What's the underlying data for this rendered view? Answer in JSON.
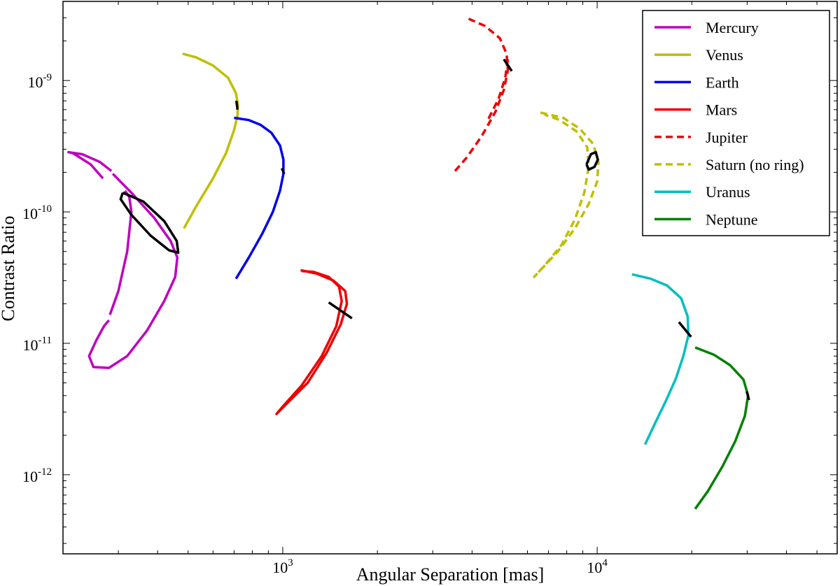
{
  "chart_data": {
    "type": "line",
    "xscale": "log",
    "yscale": "log",
    "xlabel": "Angular Separation [mas]",
    "ylabel": "Contrast Ratio",
    "xlim": [
      200,
      58000
    ],
    "ylim": [
      2.5e-13,
      4e-09
    ],
    "xticks": [
      {
        "value": 1000,
        "base": "10",
        "exp": "3"
      },
      {
        "value": 10000,
        "base": "10",
        "exp": "4"
      }
    ],
    "yticks": [
      {
        "value": 1e-09,
        "base": "10",
        "exp": "-9"
      },
      {
        "value": 1e-10,
        "base": "10",
        "exp": "-10"
      },
      {
        "value": 1e-11,
        "base": "10",
        "exp": "-11"
      },
      {
        "value": 1e-12,
        "base": "10",
        "exp": "-12"
      }
    ],
    "grid": false,
    "legend_position": "top-right",
    "series": [
      {
        "name": "Mercury",
        "color": "#bf00bf",
        "style": "solid",
        "paths": [
          [
            [
              268,
              1.8e-10
            ],
            [
              245,
              2.3e-10
            ],
            [
              215,
              2.8e-10
            ],
            [
              208,
              2.85e-10
            ],
            [
              230,
              2.75e-10
            ],
            [
              262,
              2.4e-10
            ],
            [
              285,
              2.05e-10
            ]
          ],
          [
            [
              288,
              1.95e-10
            ],
            [
              330,
              1.4e-10
            ],
            [
              390,
              9e-11
            ],
            [
              440,
              6e-11
            ],
            [
              462,
              4.5e-11
            ],
            [
              455,
              3.2e-11
            ],
            [
              420,
              2.1e-11
            ],
            [
              370,
              1.25e-11
            ],
            [
              320,
              8e-12
            ],
            [
              280,
              6.5e-12
            ],
            [
              250,
              6.6e-12
            ],
            [
              242,
              8e-12
            ],
            [
              255,
              1.05e-11
            ],
            [
              270,
              1.35e-11
            ],
            [
              280,
              1.5e-11
            ]
          ],
          [
            [
              282,
              1.65e-11
            ],
            [
              300,
              2.5e-11
            ],
            [
              320,
              5e-11
            ],
            [
              330,
              1e-10
            ],
            [
              325,
              1.3e-10
            ],
            [
              315,
              1.45e-10
            ]
          ]
        ]
      },
      {
        "name": "Venus",
        "color": "#bfbf00",
        "style": "solid",
        "paths": [
          [
            [
              485,
              7.5e-11
            ],
            [
              530,
              1.1e-10
            ],
            [
              600,
              1.8e-10
            ],
            [
              660,
              2.8e-10
            ],
            [
              700,
              4.2e-10
            ],
            [
              718,
              5.4e-10
            ],
            [
              720,
              6.5e-10
            ],
            [
              710,
              8e-10
            ],
            [
              670,
              1.05e-09
            ],
            [
              600,
              1.3e-09
            ],
            [
              530,
              1.5e-09
            ],
            [
              480,
              1.6e-09
            ]
          ]
        ]
      },
      {
        "name": "Earth",
        "color": "#0000ee",
        "style": "solid",
        "paths": [
          [
            [
              710,
              3.1e-11
            ],
            [
              780,
              4.5e-11
            ],
            [
              860,
              6.8e-11
            ],
            [
              930,
              1e-10
            ],
            [
              980,
              1.45e-10
            ],
            [
              1005,
              1.95e-10
            ],
            [
              1005,
              2.5e-10
            ],
            [
              980,
              3.2e-10
            ],
            [
              920,
              4e-10
            ],
            [
              850,
              4.6e-10
            ],
            [
              780,
              5e-10
            ],
            [
              700,
              5.2e-10
            ]
          ]
        ]
      },
      {
        "name": "Mars",
        "color": "#ee0000",
        "style": "solid",
        "paths": [
          [
            [
              1140,
              3.6e-11
            ],
            [
              1280,
              3.4e-11
            ],
            [
              1450,
              3e-11
            ],
            [
              1580,
              2.5e-11
            ],
            [
              1600,
              2e-11
            ],
            [
              1530,
              1.4e-11
            ],
            [
              1380,
              8.5e-12
            ],
            [
              1200,
              5e-12
            ],
            [
              1020,
              3.4e-12
            ],
            [
              955,
              2.9e-12
            ],
            [
              1000,
              3.3e-12
            ],
            [
              1150,
              4.8e-12
            ],
            [
              1330,
              8e-12
            ],
            [
              1480,
              1.35e-11
            ],
            [
              1540,
              2.1e-11
            ],
            [
              1510,
              2.7e-11
            ],
            [
              1400,
              3.2e-11
            ],
            [
              1250,
              3.5e-11
            ],
            [
              1150,
              3.55e-11
            ]
          ]
        ]
      },
      {
        "name": "Jupiter",
        "color": "#ee0000",
        "style": "dashed",
        "paths": [
          [
            [
              3900,
              2.95e-09
            ],
            [
              4400,
              2.6e-09
            ],
            [
              4900,
              2.1e-09
            ],
            [
              5150,
              1.6e-09
            ],
            [
              5200,
              1.2e-09
            ],
            [
              5050,
              8.5e-10
            ],
            [
              4750,
              5.8e-10
            ],
            [
              4300,
              3.8e-10
            ],
            [
              3850,
              2.6e-10
            ],
            [
              3500,
              2e-10
            ]
          ],
          [
            [
              5200,
              1.45e-09
            ],
            [
              5100,
              1.05e-09
            ],
            [
              4850,
              7.2e-10
            ],
            [
              4450,
              4.8e-10
            ]
          ]
        ]
      },
      {
        "name": "Saturn (no ring)",
        "color": "#bfbf00",
        "style": "dashed",
        "paths": [
          [
            [
              6600,
              5.7e-10
            ],
            [
              7800,
              5.2e-10
            ],
            [
              8800,
              4.3e-10
            ],
            [
              9700,
              3.3e-10
            ],
            [
              10100,
              2.4e-10
            ],
            [
              10000,
              1.7e-10
            ],
            [
              9400,
              1.15e-10
            ],
            [
              8500,
              7.5e-11
            ],
            [
              7500,
              5e-11
            ],
            [
              6600,
              3.6e-11
            ],
            [
              6300,
              3.2e-11
            ],
            [
              6800,
              3.9e-11
            ],
            [
              7700,
              5.6e-11
            ],
            [
              8500,
              8.8e-11
            ],
            [
              9100,
              1.4e-10
            ],
            [
              9400,
              2.2e-10
            ],
            [
              9300,
              3.1e-10
            ],
            [
              8600,
              4.1e-10
            ],
            [
              7600,
              5e-10
            ],
            [
              6800,
              5.5e-10
            ]
          ]
        ]
      },
      {
        "name": "Uranus",
        "color": "#00bfbf",
        "style": "solid",
        "paths": [
          [
            [
              14200,
              1.7e-12
            ],
            [
              15200,
              2.4e-12
            ],
            [
              16500,
              3.6e-12
            ],
            [
              17800,
              5.4e-12
            ],
            [
              18800,
              8e-12
            ],
            [
              19500,
              1.15e-11
            ],
            [
              19400,
              1.6e-11
            ],
            [
              18500,
              2.2e-11
            ],
            [
              16700,
              2.75e-11
            ],
            [
              14800,
              3.1e-11
            ],
            [
              12900,
              3.35e-11
            ]
          ]
        ]
      },
      {
        "name": "Neptune",
        "color": "#008000",
        "style": "solid",
        "paths": [
          [
            [
              20500,
              5.5e-13
            ],
            [
              22500,
              7.5e-13
            ],
            [
              25000,
              1.15e-12
            ],
            [
              27500,
              1.8e-12
            ],
            [
              29500,
              2.8e-12
            ],
            [
              30200,
              4e-12
            ],
            [
              29200,
              5.3e-12
            ],
            [
              26500,
              6.8e-12
            ],
            [
              23500,
              8.2e-12
            ],
            [
              20500,
              9.3e-12
            ]
          ]
        ]
      }
    ],
    "markers": [
      {
        "shape": "ellipse",
        "color": "#000000",
        "points": [
          [
            310,
            1.4e-10
          ],
          [
            360,
            1.2e-10
          ],
          [
            420,
            8.5e-11
          ],
          [
            460,
            6e-11
          ],
          [
            465,
            4.9e-11
          ],
          [
            435,
            5.1e-11
          ],
          [
            380,
            6.6e-11
          ],
          [
            330,
            9.5e-11
          ],
          [
            305,
            1.25e-10
          ],
          [
            310,
            1.4e-10
          ]
        ]
      },
      {
        "shape": "tick",
        "color": "#000000",
        "points": [
          [
            712,
            7e-10
          ],
          [
            718,
            6e-10
          ]
        ]
      },
      {
        "shape": "tick",
        "color": "#000000",
        "points": [
          [
            993,
            2.15e-10
          ],
          [
            1010,
            1.95e-10
          ]
        ]
      },
      {
        "shape": "tick",
        "color": "#000000",
        "points": [
          [
            1400,
            2.05e-11
          ],
          [
            1660,
            1.55e-11
          ]
        ]
      },
      {
        "shape": "tick",
        "color": "#000000",
        "points": [
          [
            5050,
            1.45e-09
          ],
          [
            5350,
            1.18e-09
          ]
        ]
      },
      {
        "shape": "ellipse",
        "color": "#000000",
        "points": [
          [
            9250,
            2.3e-10
          ],
          [
            9550,
            2.75e-10
          ],
          [
            9900,
            2.85e-10
          ],
          [
            10050,
            2.5e-10
          ],
          [
            9800,
            2.2e-10
          ],
          [
            9400,
            2.1e-10
          ],
          [
            9250,
            2.3e-10
          ]
        ]
      },
      {
        "shape": "tick",
        "color": "#000000",
        "points": [
          [
            18200,
            1.45e-11
          ],
          [
            19900,
            1.12e-11
          ]
        ]
      },
      {
        "shape": "tick",
        "color": "#000000",
        "points": [
          [
            29900,
            4.3e-12
          ],
          [
            30400,
            3.7e-12
          ]
        ]
      }
    ]
  }
}
